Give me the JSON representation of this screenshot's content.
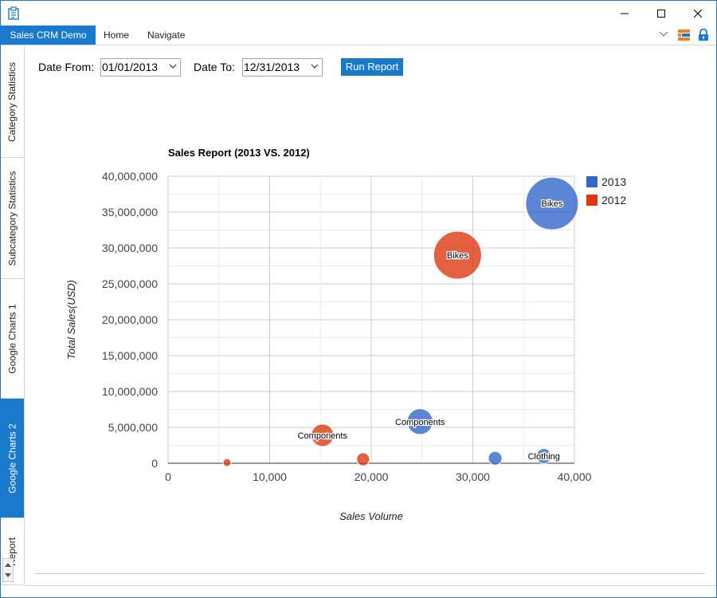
{
  "window": {
    "app_icon": "clipboard-icon",
    "controls": [
      "minimize-icon",
      "maximize-icon",
      "close-icon"
    ]
  },
  "menubar": {
    "app_tab": "Sales CRM Demo",
    "tabs": [
      "Home",
      "Navigate"
    ],
    "right_icons": [
      "chevron-down-icon",
      "syncfusion-logo-icon",
      "lock-icon"
    ]
  },
  "sidebar": {
    "tabs": [
      {
        "label": "Category Statistics",
        "active": false
      },
      {
        "label": "Subcategory Statistics",
        "active": false
      },
      {
        "label": "Google Charts 1",
        "active": false
      },
      {
        "label": "Google Charts 2",
        "active": true
      },
      {
        "label": "Report",
        "active": false
      }
    ]
  },
  "filters": {
    "date_from_label": "Date From:",
    "date_from_value": "01/01/2013",
    "date_to_label": "Date To:",
    "date_to_value": "12/31/2013",
    "run_label": "Run Report"
  },
  "colors": {
    "accent": "#1979ca",
    "series_2013": "#3366cc",
    "series_2012": "#dc3912"
  },
  "chart_data": {
    "type": "bubble",
    "title": "Sales Report (2013 VS. 2012)",
    "xlabel": "Sales Volume",
    "ylabel": "Total Sales(USD)",
    "xlim": [
      0,
      40000
    ],
    "ylim": [
      0,
      40000000
    ],
    "x_ticks": [
      "0",
      "10,000",
      "20,000",
      "30,000",
      "40,000"
    ],
    "y_ticks": [
      "0",
      "5,000,000",
      "10,000,000",
      "15,000,000",
      "20,000,000",
      "25,000,000",
      "30,000,000",
      "35,000,000",
      "40,000,000"
    ],
    "grid": true,
    "legend_position": "right",
    "series": [
      {
        "name": "2013",
        "points": [
          {
            "label": "Bikes",
            "x": 37800,
            "y": 36200000,
            "size": 36200000
          },
          {
            "label": "Components",
            "x": 24800,
            "y": 5800000,
            "size": 5800000
          },
          {
            "label": "",
            "x": 32200,
            "y": 700000,
            "size": 700000
          },
          {
            "label": "Clothing",
            "x": 37000,
            "y": 1000000,
            "size": 1000000
          }
        ]
      },
      {
        "name": "2012",
        "points": [
          {
            "label": "Bikes",
            "x": 28500,
            "y": 29000000,
            "size": 29000000
          },
          {
            "label": "Components",
            "x": 15200,
            "y": 3900000,
            "size": 3900000
          },
          {
            "label": "",
            "x": 19200,
            "y": 550000,
            "size": 550000
          },
          {
            "label": "",
            "x": 5800,
            "y": 100000,
            "size": 100000
          }
        ]
      }
    ]
  }
}
